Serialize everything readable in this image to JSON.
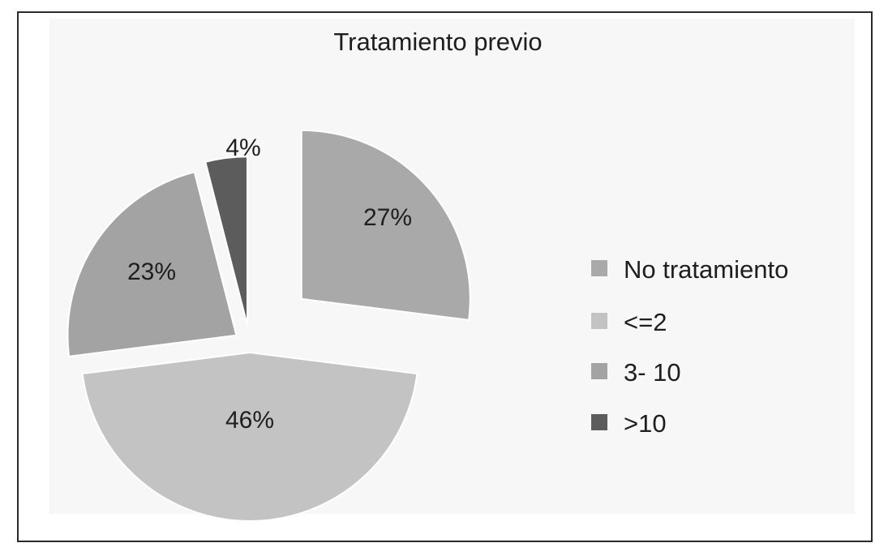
{
  "chart_data": {
    "type": "pie",
    "title": "Tratamiento previo",
    "categories": [
      "No tratamiento",
      "<=2",
      "3- 10",
      ">10"
    ],
    "values": [
      27,
      46,
      23,
      4
    ],
    "data_labels": [
      "27%",
      "46%",
      "23%",
      "4%"
    ],
    "colors": [
      "#a9a9a9",
      "#c3c3c3",
      "#a3a3a3",
      "#5c5c5c"
    ],
    "exploded": true,
    "legend_position": "right"
  }
}
